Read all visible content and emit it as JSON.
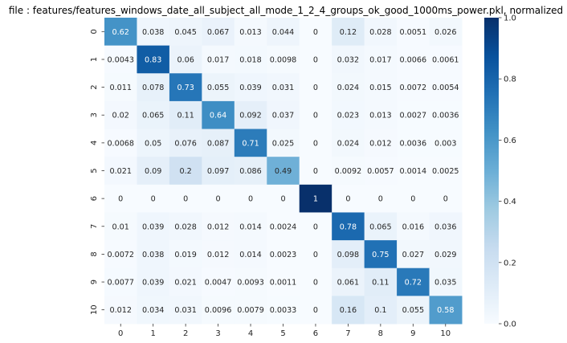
{
  "chart_data": {
    "type": "heatmap",
    "title": "file : features/features_windows_date_all_subject_all_mode_1_2_4_groups_ok_good_1000ms_power.pkl, normalized",
    "x_ticks": [
      "0",
      "1",
      "2",
      "3",
      "4",
      "5",
      "6",
      "7",
      "8",
      "9",
      "10"
    ],
    "y_ticks": [
      "0",
      "1",
      "2",
      "3",
      "4",
      "5",
      "6",
      "7",
      "8",
      "9",
      "10"
    ],
    "values": [
      [
        0.62,
        0.038,
        0.045,
        0.067,
        0.013,
        0.044,
        0,
        0.12,
        0.028,
        0.0051,
        0.026
      ],
      [
        0.0043,
        0.83,
        0.06,
        0.017,
        0.018,
        0.0098,
        0,
        0.032,
        0.017,
        0.0066,
        0.0061
      ],
      [
        0.011,
        0.078,
        0.73,
        0.055,
        0.039,
        0.031,
        0,
        0.024,
        0.015,
        0.0072,
        0.0054
      ],
      [
        0.02,
        0.065,
        0.11,
        0.64,
        0.092,
        0.037,
        0,
        0.023,
        0.013,
        0.0027,
        0.0036
      ],
      [
        0.0068,
        0.05,
        0.076,
        0.087,
        0.71,
        0.025,
        0,
        0.024,
        0.012,
        0.0036,
        0.003
      ],
      [
        0.021,
        0.09,
        0.2,
        0.097,
        0.086,
        0.49,
        0,
        0.0092,
        0.0057,
        0.0014,
        0.0025
      ],
      [
        0,
        0,
        0,
        0,
        0,
        0,
        1,
        0,
        0,
        0,
        0
      ],
      [
        0.01,
        0.039,
        0.028,
        0.012,
        0.014,
        0.0024,
        0,
        0.78,
        0.065,
        0.016,
        0.036
      ],
      [
        0.0072,
        0.038,
        0.019,
        0.012,
        0.014,
        0.0023,
        0,
        0.098,
        0.75,
        0.027,
        0.029
      ],
      [
        0.0077,
        0.039,
        0.021,
        0.0047,
        0.0093,
        0.0011,
        0,
        0.061,
        0.11,
        0.72,
        0.035
      ],
      [
        0.012,
        0.034,
        0.031,
        0.0096,
        0.0079,
        0.0033,
        0,
        0.16,
        0.1,
        0.055,
        0.58
      ]
    ],
    "colorbar": {
      "min": 0,
      "max": 1,
      "ticks": [
        "0.0",
        "0.2",
        "0.4",
        "0.6",
        "0.8",
        "1.0"
      ],
      "colormap": "Blues"
    }
  }
}
